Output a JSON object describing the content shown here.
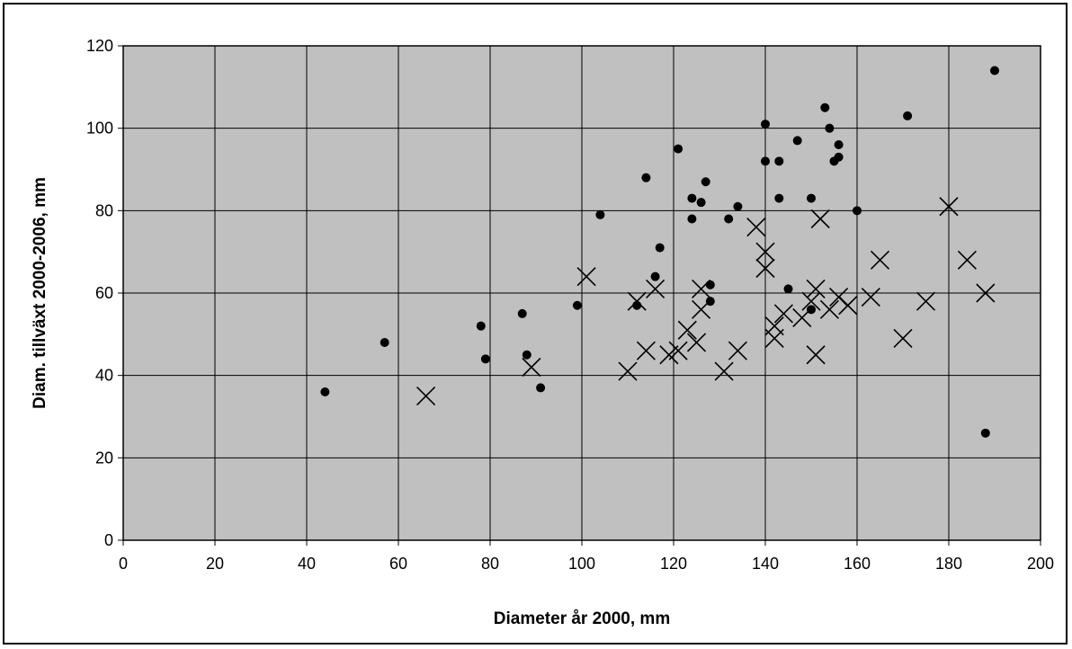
{
  "chart_data": {
    "type": "scatter",
    "title": "",
    "xlabel": "Diameter år 2000, mm",
    "ylabel": "Diam. tillväxt 2000-2006, mm",
    "xlim": [
      0,
      200
    ],
    "ylim": [
      0,
      120
    ],
    "xticks": [
      0,
      20,
      40,
      60,
      80,
      100,
      120,
      140,
      160,
      180,
      200
    ],
    "yticks": [
      0,
      20,
      40,
      60,
      80,
      100,
      120
    ],
    "grid": true,
    "legend": "none",
    "plot_background": "#c0c0c0",
    "series": [
      {
        "marker": "circle",
        "color": "#000000",
        "points": [
          [
            44,
            36
          ],
          [
            57,
            48
          ],
          [
            78,
            52
          ],
          [
            79,
            44
          ],
          [
            87,
            55
          ],
          [
            88,
            45
          ],
          [
            91,
            37
          ],
          [
            99,
            57
          ],
          [
            104,
            79
          ],
          [
            112,
            57
          ],
          [
            114,
            88
          ],
          [
            116,
            64
          ],
          [
            117,
            71
          ],
          [
            121,
            95
          ],
          [
            124,
            83
          ],
          [
            124,
            78
          ],
          [
            126,
            82
          ],
          [
            127,
            87
          ],
          [
            128,
            62
          ],
          [
            128,
            58
          ],
          [
            132,
            78
          ],
          [
            134,
            81
          ],
          [
            140,
            101
          ],
          [
            140,
            92
          ],
          [
            143,
            92
          ],
          [
            143,
            83
          ],
          [
            145,
            61
          ],
          [
            147,
            97
          ],
          [
            150,
            83
          ],
          [
            150,
            56
          ],
          [
            153,
            105
          ],
          [
            154,
            100
          ],
          [
            155,
            92
          ],
          [
            156,
            93
          ],
          [
            156,
            96
          ],
          [
            160,
            80
          ],
          [
            171,
            103
          ],
          [
            188,
            26
          ],
          [
            190,
            114
          ]
        ]
      },
      {
        "marker": "x",
        "color": "#000000",
        "points": [
          [
            66,
            35
          ],
          [
            89,
            42
          ],
          [
            101,
            64
          ],
          [
            110,
            41
          ],
          [
            112,
            58
          ],
          [
            114,
            46
          ],
          [
            116,
            61
          ],
          [
            119,
            45
          ],
          [
            121,
            46
          ],
          [
            123,
            51
          ],
          [
            125,
            48
          ],
          [
            126,
            61
          ],
          [
            126,
            56
          ],
          [
            131,
            41
          ],
          [
            134,
            46
          ],
          [
            138,
            76
          ],
          [
            140,
            70
          ],
          [
            140,
            66
          ],
          [
            142,
            52
          ],
          [
            142,
            49
          ],
          [
            144,
            55
          ],
          [
            148,
            54
          ],
          [
            150,
            58
          ],
          [
            151,
            61
          ],
          [
            151,
            45
          ],
          [
            152,
            78
          ],
          [
            154,
            56
          ],
          [
            156,
            59
          ],
          [
            158,
            57
          ],
          [
            163,
            59
          ],
          [
            165,
            68
          ],
          [
            170,
            49
          ],
          [
            175,
            58
          ],
          [
            180,
            81
          ],
          [
            184,
            68
          ],
          [
            188,
            60
          ]
        ]
      }
    ]
  }
}
